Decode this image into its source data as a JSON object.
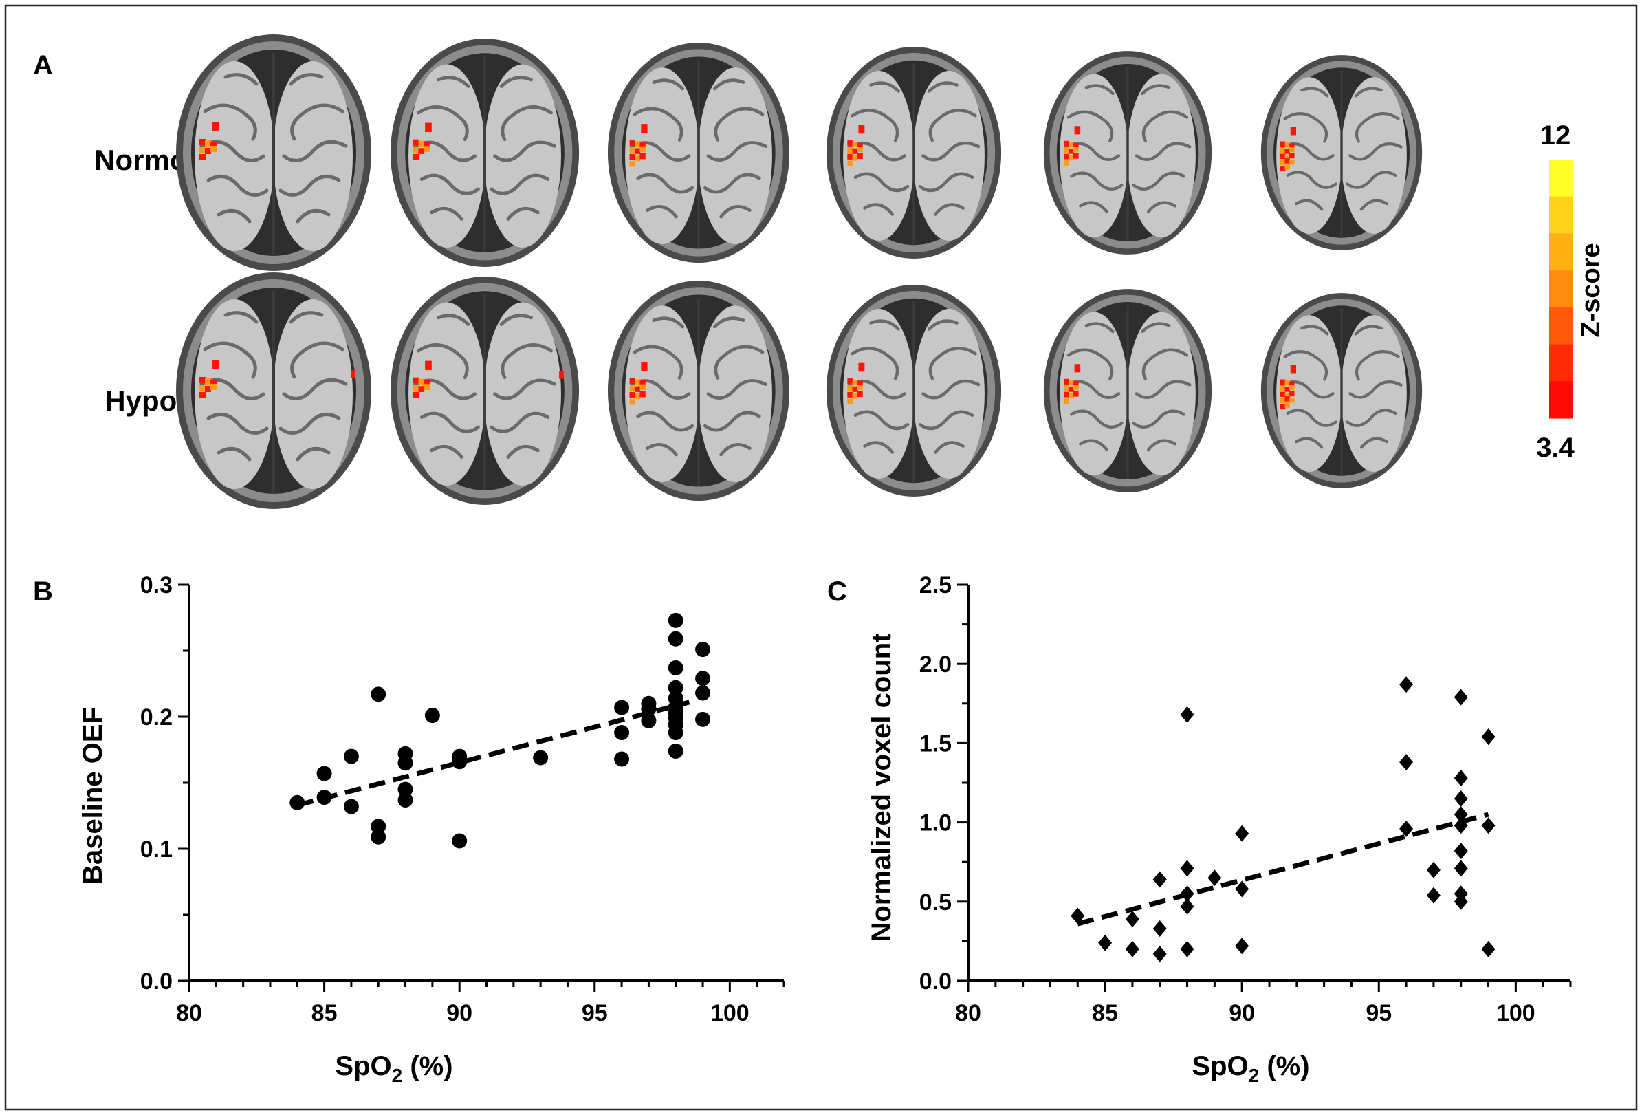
{
  "panels": {
    "a_label": "A",
    "b_label": "B",
    "c_label": "C"
  },
  "brain_panel": {
    "rows": [
      {
        "label": "Normoxia",
        "slices": [
          {
            "activation": "left-motor-small"
          },
          {
            "activation": "left-motor-small"
          },
          {
            "activation": "left-motor-medium"
          },
          {
            "activation": "left-motor-medium"
          },
          {
            "activation": "left-motor-medium"
          },
          {
            "activation": "left-motor-large"
          }
        ]
      },
      {
        "label": "Hypoxia",
        "slices": [
          {
            "activation": "left-motor-small-with-right"
          },
          {
            "activation": "left-motor-small-with-right"
          },
          {
            "activation": "left-motor-medium"
          },
          {
            "activation": "left-motor-medium"
          },
          {
            "activation": "left-motor-medium"
          },
          {
            "activation": "left-motor-large"
          }
        ]
      }
    ],
    "colorbar": {
      "title": "Z-score",
      "max_label": "12",
      "min_label": "3.4",
      "colors": [
        "#ffff2a",
        "#ffd21c",
        "#ffb012",
        "#ff8a10",
        "#ff5a0c",
        "#ff2a08",
        "#ff0a06"
      ]
    }
  },
  "chart_data": [
    {
      "type": "scatter",
      "panel": "B",
      "xlabel": "SpO",
      "xlabel_sub": "2",
      "xlabel_unit": " (%)",
      "ylabel": "Baseline OEF",
      "xlim": [
        80,
        102
      ],
      "ylim": [
        0.0,
        0.3
      ],
      "xticks": [
        80,
        85,
        90,
        95,
        100
      ],
      "xtick_labels": [
        "80",
        "85",
        "90",
        "95",
        "100"
      ],
      "yticks": [
        0.0,
        0.1,
        0.2,
        0.3
      ],
      "ytick_labels": [
        "0.0",
        "0.1",
        "0.2",
        "0.3"
      ],
      "marker": "circle",
      "points": [
        [
          84,
          0.135
        ],
        [
          85,
          0.157
        ],
        [
          85,
          0.139
        ],
        [
          86,
          0.17
        ],
        [
          86,
          0.132
        ],
        [
          87,
          0.217
        ],
        [
          87,
          0.117
        ],
        [
          87,
          0.109
        ],
        [
          88,
          0.172
        ],
        [
          88,
          0.165
        ],
        [
          88,
          0.145
        ],
        [
          88,
          0.137
        ],
        [
          89,
          0.201
        ],
        [
          90,
          0.17
        ],
        [
          90,
          0.166
        ],
        [
          90,
          0.106
        ],
        [
          93,
          0.169
        ],
        [
          96,
          0.207
        ],
        [
          96,
          0.188
        ],
        [
          96,
          0.168
        ],
        [
          97,
          0.21
        ],
        [
          97,
          0.206
        ],
        [
          97,
          0.197
        ],
        [
          98,
          0.273
        ],
        [
          98,
          0.259
        ],
        [
          98,
          0.237
        ],
        [
          98,
          0.222
        ],
        [
          98,
          0.214
        ],
        [
          98,
          0.207
        ],
        [
          98,
          0.203
        ],
        [
          98,
          0.199
        ],
        [
          98,
          0.194
        ],
        [
          98,
          0.188
        ],
        [
          98,
          0.174
        ],
        [
          99,
          0.251
        ],
        [
          99,
          0.229
        ],
        [
          99,
          0.218
        ],
        [
          99,
          0.198
        ]
      ],
      "fit": {
        "style": "dashed",
        "x": [
          84,
          98.5
        ],
        "y": [
          0.133,
          0.211
        ]
      }
    },
    {
      "type": "scatter",
      "panel": "C",
      "xlabel": "SpO",
      "xlabel_sub": "2",
      "xlabel_unit": " (%)",
      "ylabel": "Normalized voxel count",
      "xlim": [
        80,
        102
      ],
      "ylim": [
        0.0,
        2.5
      ],
      "xticks": [
        80,
        85,
        90,
        95,
        100
      ],
      "xtick_labels": [
        "80",
        "85",
        "90",
        "95",
        "100"
      ],
      "yticks": [
        0.0,
        0.5,
        1.0,
        1.5,
        2.0,
        2.5
      ],
      "ytick_labels": [
        "0.0",
        "0.5",
        "1.0",
        "1.5",
        "2.0",
        "2.5"
      ],
      "marker": "diamond",
      "points": [
        [
          84,
          0.41
        ],
        [
          85,
          0.24
        ],
        [
          86,
          0.39
        ],
        [
          86,
          0.2
        ],
        [
          87,
          0.64
        ],
        [
          87,
          0.33
        ],
        [
          87,
          0.17
        ],
        [
          88,
          1.68
        ],
        [
          88,
          0.71
        ],
        [
          88,
          0.55
        ],
        [
          88,
          0.47
        ],
        [
          88,
          0.2
        ],
        [
          89,
          0.65
        ],
        [
          90,
          0.93
        ],
        [
          90,
          0.58
        ],
        [
          90,
          0.22
        ],
        [
          96,
          1.87
        ],
        [
          96,
          1.38
        ],
        [
          96,
          0.96
        ],
        [
          97,
          0.7
        ],
        [
          97,
          0.54
        ],
        [
          98,
          1.79
        ],
        [
          98,
          1.28
        ],
        [
          98,
          1.15
        ],
        [
          98,
          1.05
        ],
        [
          98,
          0.98
        ],
        [
          98,
          0.82
        ],
        [
          98,
          0.71
        ],
        [
          98,
          0.55
        ],
        [
          98,
          0.5
        ],
        [
          99,
          1.54
        ],
        [
          99,
          0.98
        ],
        [
          99,
          0.2
        ]
      ],
      "fit": {
        "style": "dashed",
        "x": [
          84,
          99
        ],
        "y": [
          0.36,
          1.05
        ]
      }
    }
  ]
}
